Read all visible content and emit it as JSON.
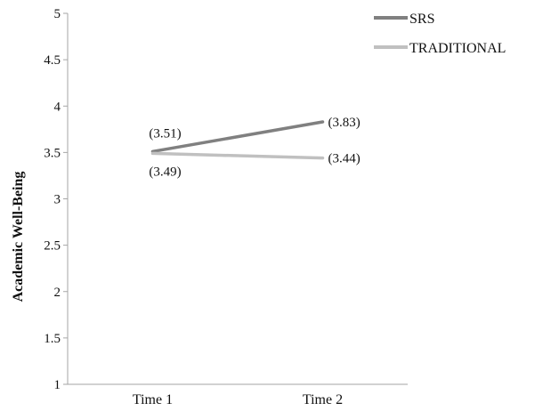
{
  "chart_data": {
    "type": "line",
    "categories": [
      "Time 1",
      "Time 2"
    ],
    "series": [
      {
        "name": "SRS",
        "values": [
          3.51,
          3.83
        ],
        "labels": [
          "(3.51)",
          "(3.83)"
        ],
        "color": "#808080"
      },
      {
        "name": "TRADITIONAL",
        "values": [
          3.49,
          3.44
        ],
        "labels": [
          "(3.49)",
          "(3.44)"
        ],
        "color": "#c0c0c0"
      }
    ],
    "ylabel": "Academic Well-Being",
    "xlabel": "",
    "ylim": [
      1,
      5
    ],
    "yticks": [
      "1",
      "1.5",
      "2",
      "2.5",
      "3",
      "3.5",
      "4",
      "4.5",
      "5"
    ],
    "grid": false,
    "legend": "top-right",
    "axis_color": "#a6a6a6"
  }
}
